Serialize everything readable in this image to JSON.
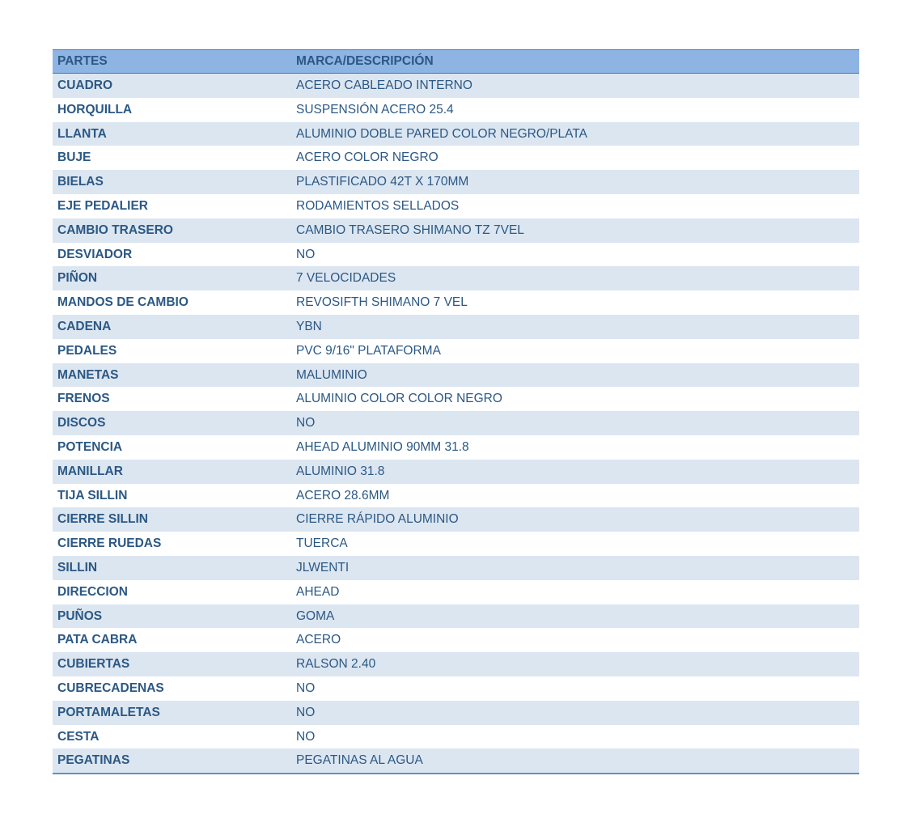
{
  "colors": {
    "header_bg": "#8EB4E3",
    "stripe_bg": "#DCE6F1",
    "border_dark": "#50709F",
    "border_bottom": "#6591BC",
    "text": "#2B5884",
    "page_bg": "#FFFFFF"
  },
  "table": {
    "headers": [
      "PARTES",
      "MARCA/DESCRIPCIÓN"
    ],
    "rows": [
      {
        "parte": "CUADRO",
        "marca": "ACERO CABLEADO INTERNO"
      },
      {
        "parte": "HORQUILLA",
        "marca": "SUSPENSIÓN ACERO 25.4"
      },
      {
        "parte": "LLANTA",
        "marca": "ALUMINIO DOBLE PARED COLOR NEGRO/PLATA"
      },
      {
        "parte": "BUJE",
        "marca": "ACERO COLOR NEGRO"
      },
      {
        "parte": "BIELAS",
        "marca": "PLASTIFICADO 42T X 170MM"
      },
      {
        "parte": "EJE PEDALIER",
        "marca": "RODAMIENTOS SELLADOS"
      },
      {
        "parte": "CAMBIO TRASERO",
        "marca": "CAMBIO TRASERO SHIMANO TZ 7VEL"
      },
      {
        "parte": "DESVIADOR",
        "marca": "NO"
      },
      {
        "parte": "PIÑON",
        "marca": "7 VELOCIDADES"
      },
      {
        "parte": "MANDOS DE CAMBIO",
        "marca": "REVOSIFTH SHIMANO 7 VEL"
      },
      {
        "parte": "CADENA",
        "marca": "YBN"
      },
      {
        "parte": "PEDALES",
        "marca": "PVC 9/16\" PLATAFORMA"
      },
      {
        "parte": "MANETAS",
        "marca": "MALUMINIO"
      },
      {
        "parte": "FRENOS",
        "marca": "ALUMINIO COLOR COLOR NEGRO"
      },
      {
        "parte": "DISCOS",
        "marca": "NO"
      },
      {
        "parte": "POTENCIA",
        "marca": "AHEAD ALUMINIO 90MM 31.8"
      },
      {
        "parte": "MANILLAR",
        "marca": "ALUMINIO 31.8"
      },
      {
        "parte": "TIJA SILLIN",
        "marca": "ACERO 28.6MM"
      },
      {
        "parte": "CIERRE SILLIN",
        "marca": "CIERRE RÁPIDO ALUMINIO"
      },
      {
        "parte": "CIERRE RUEDAS",
        "marca": "TUERCA"
      },
      {
        "parte": "SILLIN",
        "marca": "JLWENTI"
      },
      {
        "parte": "DIRECCION",
        "marca": "AHEAD"
      },
      {
        "parte": "PUÑOS",
        "marca": "GOMA"
      },
      {
        "parte": "PATA CABRA",
        "marca": "ACERO"
      },
      {
        "parte": "CUBIERTAS",
        "marca": "RALSON 2.40"
      },
      {
        "parte": "CUBRECADENAS",
        "marca": "NO"
      },
      {
        "parte": "PORTAMALETAS",
        "marca": "NO"
      },
      {
        "parte": "CESTA",
        "marca": "NO"
      },
      {
        "parte": "PEGATINAS",
        "marca": "PEGATINAS AL AGUA"
      }
    ]
  }
}
